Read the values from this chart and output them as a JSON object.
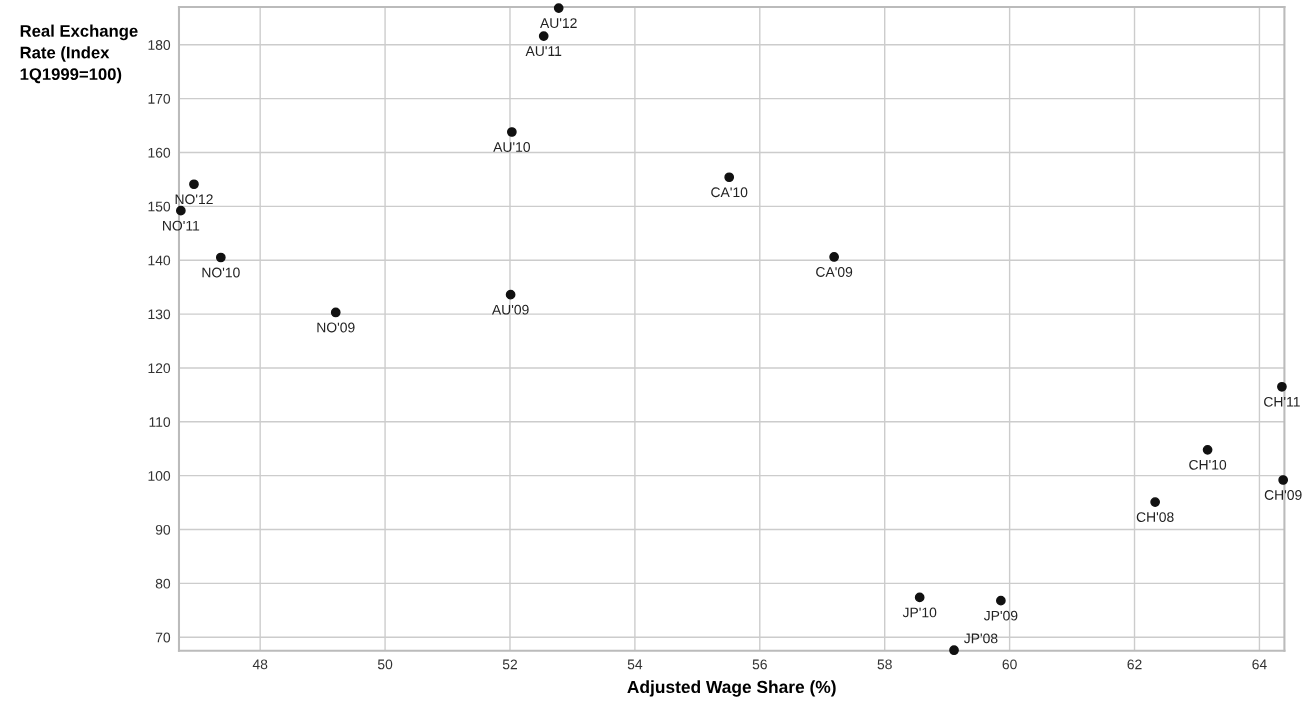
{
  "chart_data": {
    "type": "scatter",
    "xlabel": "Adjusted Wage Share (%)",
    "ylabel": "Real Exchange Rate (Index 1Q1999=100)",
    "x": [
      52.78,
      52.54,
      52.03,
      52.01,
      46.94,
      46.73,
      47.37,
      49.21,
      55.51,
      57.19,
      64.36,
      63.17,
      64.38,
      62.33,
      58.56,
      59.86,
      59.11
    ],
    "series": [
      {
        "color": "#111111",
        "values": [
          186.8,
          181.6,
          163.8,
          133.6,
          154.1,
          149.2,
          140.5,
          130.3,
          155.4,
          140.6,
          116.5,
          104.8,
          99.2,
          95.1,
          77.4,
          76.8,
          67.6
        ]
      }
    ],
    "annotations": [
      {
        "text": "AU'12",
        "x": 52.78,
        "y": 186.8
      },
      {
        "text": "AU'11",
        "x": 52.54,
        "y": 181.6
      },
      {
        "text": "AU'10",
        "x": 52.03,
        "y": 163.8
      },
      {
        "text": "AU'09",
        "x": 52.01,
        "y": 133.6
      },
      {
        "text": "NO'12",
        "x": 46.94,
        "y": 154.1
      },
      {
        "text": "NO'11",
        "x": 46.73,
        "y": 149.2
      },
      {
        "text": "NO'10",
        "x": 47.37,
        "y": 140.5
      },
      {
        "text": "NO'09",
        "x": 49.21,
        "y": 130.3
      },
      {
        "text": "CA'10",
        "x": 55.51,
        "y": 155.4
      },
      {
        "text": "CA'09",
        "x": 57.19,
        "y": 140.6
      },
      {
        "text": "CH'11",
        "x": 64.36,
        "y": 116.5
      },
      {
        "text": "CH'10",
        "x": 63.17,
        "y": 104.8
      },
      {
        "text": "CH'09",
        "x": 64.38,
        "y": 99.2
      },
      {
        "text": "CH'08",
        "x": 62.33,
        "y": 95.1
      },
      {
        "text": "JP'10",
        "x": 58.56,
        "y": 77.4
      },
      {
        "text": "JP'09",
        "x": 59.86,
        "y": 76.8
      },
      {
        "text": "JP'08",
        "x": 59.11,
        "y": 67.6
      }
    ],
    "xlim": [
      46.7,
      64.4
    ],
    "xticks": [
      48,
      50,
      52,
      54,
      56,
      58,
      60,
      62,
      64
    ],
    "ylim": [
      67.5,
      187
    ],
    "yticks": [
      70,
      80,
      90,
      100,
      110,
      120,
      130,
      140,
      150,
      160,
      170,
      180
    ],
    "grid": true,
    "marker": "circle"
  }
}
